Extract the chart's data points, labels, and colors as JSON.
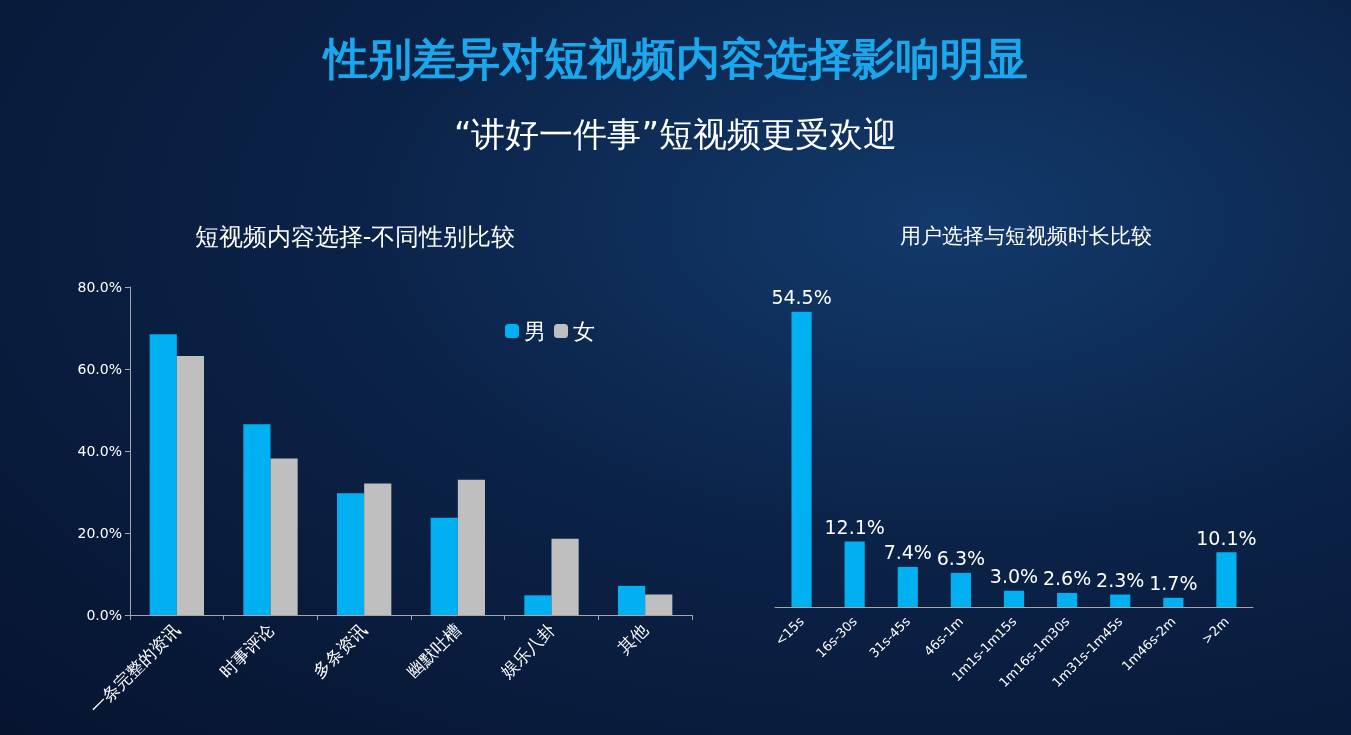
{
  "chart_data": [
    {
      "type": "bar",
      "title": "短视频内容选择-不同性别比较",
      "annotations": [
        "性别差异对短视频内容选择影响明显",
        "“讲好一件事”短视频更受欢迎"
      ],
      "categories": [
        "一条完整的资讯",
        "时事评论",
        "多条资讯",
        "幽默吐槽",
        "娱乐八卦",
        "其他"
      ],
      "series": [
        {
          "name": "男",
          "color": "#00b0f0",
          "values": [
            68.5,
            46.5,
            29.7,
            23.7,
            4.8,
            7.1
          ]
        },
        {
          "name": "女",
          "color": "#bfbfbf",
          "values": [
            63.2,
            38.2,
            32.1,
            33.0,
            18.6,
            5.0
          ]
        }
      ],
      "ylim": [
        0,
        80
      ],
      "yticks": [
        {
          "value": 0,
          "label": "0.0%"
        },
        {
          "value": 20,
          "label": "20.0%"
        },
        {
          "value": 40,
          "label": "40.0%"
        },
        {
          "value": 60,
          "label": "60.0%"
        },
        {
          "value": 80,
          "label": "80.0%"
        }
      ],
      "legend": "top right"
    },
    {
      "type": "bar",
      "title": "用户选择与短视频时长比较",
      "categories": [
        "<15s",
        "16s-30s",
        "31s-45s",
        "46s-1m",
        "1m1s-1m15s",
        "1m16s-1m30s",
        "1m31s-1m45s",
        "1m46s-2m",
        ">2m"
      ],
      "series": [
        {
          "color": "#00b0f0",
          "values": [
            54.5,
            12.1,
            7.4,
            6.3,
            3.0,
            2.6,
            2.3,
            1.7,
            10.1
          ],
          "value_labels": [
            "54.5%",
            "12.1%",
            "7.4%",
            "6.3%",
            "3.0%",
            "2.6%",
            "2.3%",
            "1.7%",
            "10.1%"
          ]
        }
      ],
      "tick_labels": "x"
    }
  ]
}
